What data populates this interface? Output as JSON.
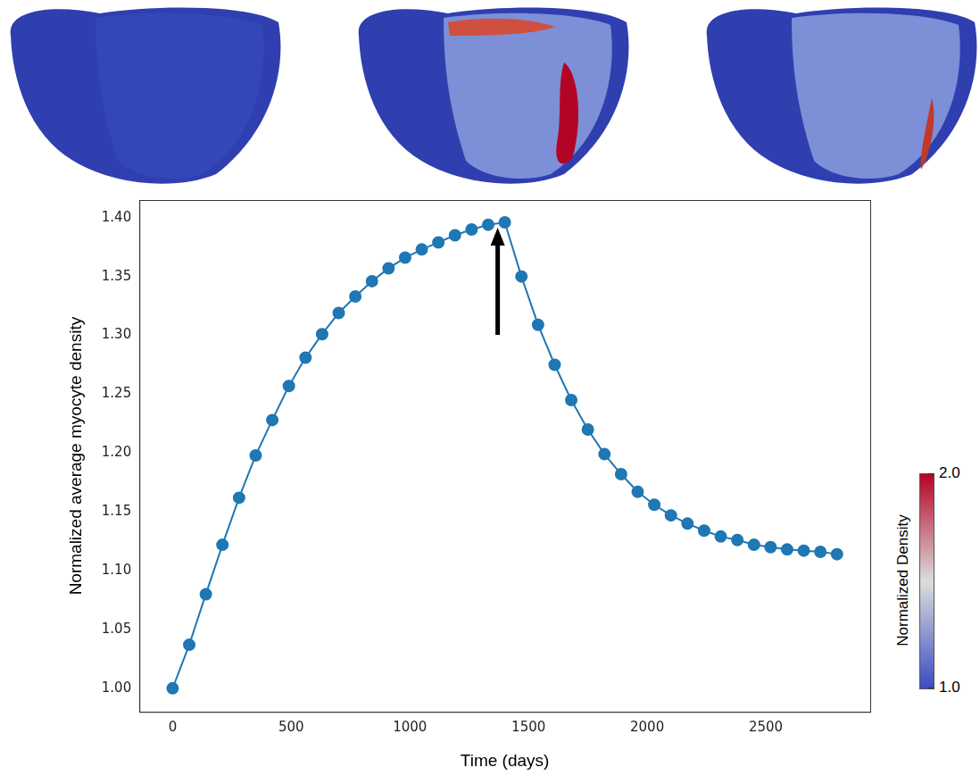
{
  "chart_data": {
    "type": "line",
    "x_label": "Time (days)",
    "y_label": "Normalized average myocyte density",
    "x": [
      0,
      70,
      140,
      210,
      280,
      350,
      420,
      490,
      560,
      630,
      700,
      770,
      840,
      910,
      980,
      1050,
      1120,
      1190,
      1260,
      1330,
      1400,
      1470,
      1540,
      1610,
      1680,
      1750,
      1820,
      1890,
      1960,
      2030,
      2100,
      2170,
      2240,
      2310,
      2380,
      2450,
      2520,
      2590,
      2660,
      2730,
      2800
    ],
    "values": [
      1.0,
      1.037,
      1.08,
      1.122,
      1.162,
      1.198,
      1.228,
      1.257,
      1.281,
      1.301,
      1.319,
      1.333,
      1.346,
      1.357,
      1.366,
      1.373,
      1.379,
      1.385,
      1.39,
      1.394,
      1.396,
      1.35,
      1.309,
      1.275,
      1.245,
      1.22,
      1.199,
      1.182,
      1.167,
      1.156,
      1.147,
      1.14,
      1.134,
      1.129,
      1.126,
      1.122,
      1.12,
      1.118,
      1.117,
      1.116,
      1.114
    ],
    "color": "#1f77b4",
    "marker": "circle",
    "line_style": "solid",
    "grid": false,
    "xlim": [
      -140,
      2940
    ],
    "xticks": [
      0,
      500,
      1000,
      1500,
      2000,
      2500
    ],
    "ylim": [
      0.98,
      1.415
    ],
    "yticks": [
      {
        "value": 1.0,
        "label": "1.00"
      },
      {
        "value": 1.05,
        "label": "1.05"
      },
      {
        "value": 1.1,
        "label": "1.10"
      },
      {
        "value": 1.15,
        "label": "1.15"
      },
      {
        "value": 1.2,
        "label": "1.20"
      },
      {
        "value": 1.25,
        "label": "1.25"
      },
      {
        "value": 1.3,
        "label": "1.30"
      },
      {
        "value": 1.35,
        "label": "1.35"
      },
      {
        "value": 1.4,
        "label": "1.40"
      }
    ],
    "colorbar": {
      "label": "Normalized Density",
      "range": [
        1.0,
        2.0
      ],
      "ticks": [
        {
          "value": 1.0,
          "label": "1.0"
        },
        {
          "value": 2.0,
          "label": "2.0"
        }
      ],
      "colors": [
        "#3b4cc0",
        "#dddddd",
        "#b40426"
      ]
    }
  }
}
